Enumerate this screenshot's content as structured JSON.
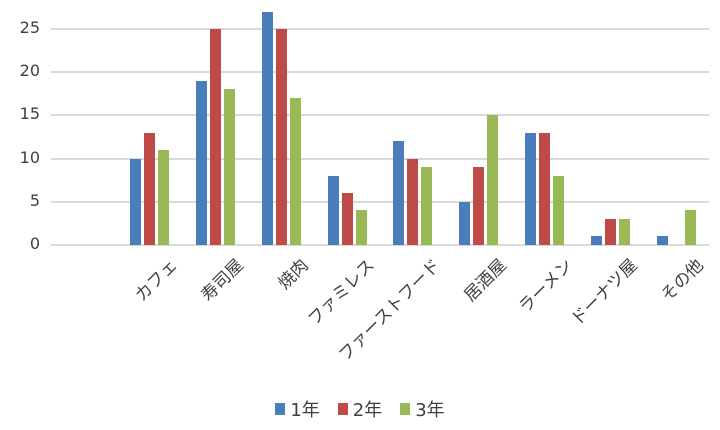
{
  "chart_data": {
    "type": "bar",
    "title": "",
    "xlabel": "",
    "ylabel": "",
    "ylim": [
      0,
      25
    ],
    "yticks": [
      0,
      5,
      10,
      15,
      20,
      25
    ],
    "grid": true,
    "legend_position": "bottom",
    "categories": [
      "",
      "カフェ",
      "寿司屋",
      "焼肉",
      "ファミレス",
      "ファーストフード",
      "居酒屋",
      "ラーメン",
      "ドーナツ屋",
      "その他"
    ],
    "series": [
      {
        "name": "1年",
        "color": "#4a7ebb",
        "values": [
          0,
          10,
          19,
          27,
          8,
          12,
          5,
          13,
          1,
          1
        ]
      },
      {
        "name": "2年",
        "color": "#be4b48",
        "values": [
          0,
          13,
          25,
          25,
          6,
          10,
          9,
          13,
          3,
          0
        ]
      },
      {
        "name": "3年",
        "color": "#98b954",
        "values": [
          0,
          11,
          18,
          17,
          4,
          9,
          15,
          8,
          3,
          4
        ]
      }
    ]
  }
}
